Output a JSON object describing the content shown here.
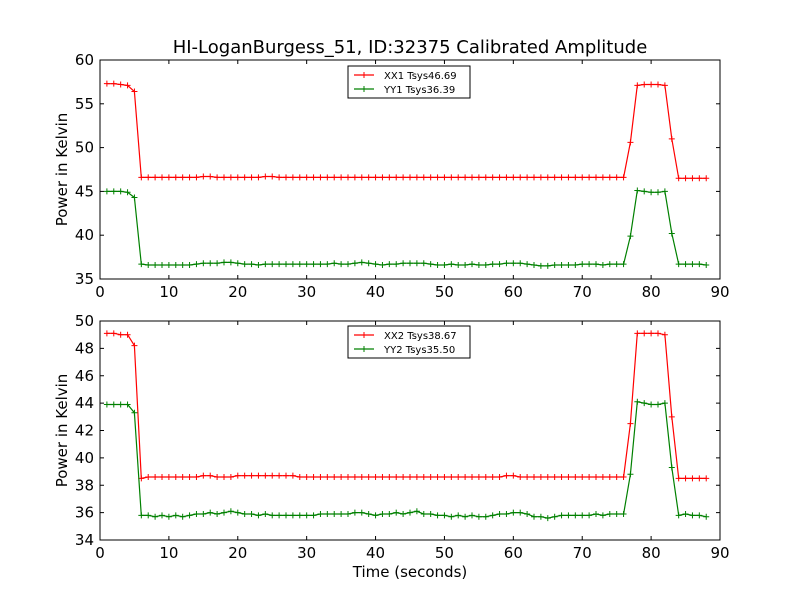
{
  "figure": {
    "title": "HI-LoganBurgess_51, ID:32375 Calibrated Amplitude"
  },
  "chart_data": [
    {
      "type": "line",
      "title": "HI-LoganBurgess_51, ID:32375 Calibrated Amplitude",
      "xlabel": "",
      "ylabel": "Power in Kelvin",
      "xlim": [
        0,
        90
      ],
      "ylim": [
        35,
        60
      ],
      "xticks": [
        0,
        10,
        20,
        30,
        40,
        50,
        60,
        70,
        80,
        90
      ],
      "yticks": [
        35,
        40,
        45,
        50,
        55,
        60
      ],
      "grid": false,
      "legend": "top-center",
      "x": [
        1,
        2,
        3,
        4,
        5,
        6,
        7,
        8,
        9,
        10,
        11,
        12,
        13,
        14,
        15,
        16,
        17,
        18,
        19,
        20,
        21,
        22,
        23,
        24,
        25,
        26,
        27,
        28,
        29,
        30,
        31,
        32,
        33,
        34,
        35,
        36,
        37,
        38,
        39,
        40,
        41,
        42,
        43,
        44,
        45,
        46,
        47,
        48,
        49,
        50,
        51,
        52,
        53,
        54,
        55,
        56,
        57,
        58,
        59,
        60,
        61,
        62,
        63,
        64,
        65,
        66,
        67,
        68,
        69,
        70,
        71,
        72,
        73,
        74,
        75,
        76,
        77,
        78,
        79,
        80,
        81,
        82,
        83,
        84,
        85,
        86,
        87,
        88
      ],
      "series": [
        {
          "name": "XX1 Tsys46.69",
          "color": "#ff0000",
          "values": [
            57.3,
            57.3,
            57.2,
            57.1,
            56.4,
            46.6,
            46.6,
            46.6,
            46.6,
            46.6,
            46.6,
            46.6,
            46.6,
            46.6,
            46.7,
            46.7,
            46.6,
            46.6,
            46.6,
            46.6,
            46.6,
            46.6,
            46.6,
            46.7,
            46.7,
            46.6,
            46.6,
            46.6,
            46.6,
            46.6,
            46.6,
            46.6,
            46.6,
            46.6,
            46.6,
            46.6,
            46.6,
            46.6,
            46.6,
            46.6,
            46.6,
            46.6,
            46.6,
            46.6,
            46.6,
            46.6,
            46.6,
            46.6,
            46.6,
            46.6,
            46.6,
            46.6,
            46.6,
            46.6,
            46.6,
            46.6,
            46.6,
            46.6,
            46.6,
            46.6,
            46.6,
            46.6,
            46.6,
            46.6,
            46.6,
            46.6,
            46.6,
            46.6,
            46.6,
            46.6,
            46.6,
            46.6,
            46.6,
            46.6,
            46.6,
            46.6,
            50.6,
            57.1,
            57.2,
            57.2,
            57.2,
            57.1,
            51.0,
            46.5,
            46.5,
            46.5,
            46.5,
            46.5
          ]
        },
        {
          "name": "YY1 Tsys36.39",
          "color": "#008000",
          "values": [
            45.0,
            45.0,
            45.0,
            44.9,
            44.3,
            36.7,
            36.6,
            36.6,
            36.6,
            36.6,
            36.6,
            36.6,
            36.6,
            36.7,
            36.8,
            36.8,
            36.8,
            36.9,
            36.9,
            36.8,
            36.7,
            36.7,
            36.6,
            36.7,
            36.7,
            36.7,
            36.7,
            36.7,
            36.7,
            36.7,
            36.7,
            36.7,
            36.7,
            36.8,
            36.7,
            36.7,
            36.8,
            36.9,
            36.8,
            36.7,
            36.6,
            36.7,
            36.7,
            36.8,
            36.8,
            36.8,
            36.8,
            36.7,
            36.6,
            36.6,
            36.7,
            36.6,
            36.6,
            36.7,
            36.6,
            36.6,
            36.7,
            36.7,
            36.8,
            36.8,
            36.8,
            36.7,
            36.6,
            36.5,
            36.5,
            36.6,
            36.6,
            36.6,
            36.6,
            36.7,
            36.7,
            36.7,
            36.6,
            36.7,
            36.7,
            36.7,
            39.9,
            45.1,
            45.0,
            44.9,
            44.9,
            45.0,
            40.2,
            36.7,
            36.7,
            36.7,
            36.7,
            36.6
          ]
        }
      ]
    },
    {
      "type": "line",
      "title": "",
      "xlabel": "Time (seconds)",
      "ylabel": "Power in Kelvin",
      "xlim": [
        0,
        90
      ],
      "ylim": [
        34,
        50
      ],
      "xticks": [
        0,
        10,
        20,
        30,
        40,
        50,
        60,
        70,
        80,
        90
      ],
      "yticks": [
        34,
        36,
        38,
        40,
        42,
        44,
        46,
        48,
        50
      ],
      "grid": false,
      "legend": "top-center",
      "x": [
        1,
        2,
        3,
        4,
        5,
        6,
        7,
        8,
        9,
        10,
        11,
        12,
        13,
        14,
        15,
        16,
        17,
        18,
        19,
        20,
        21,
        22,
        23,
        24,
        25,
        26,
        27,
        28,
        29,
        30,
        31,
        32,
        33,
        34,
        35,
        36,
        37,
        38,
        39,
        40,
        41,
        42,
        43,
        44,
        45,
        46,
        47,
        48,
        49,
        50,
        51,
        52,
        53,
        54,
        55,
        56,
        57,
        58,
        59,
        60,
        61,
        62,
        63,
        64,
        65,
        66,
        67,
        68,
        69,
        70,
        71,
        72,
        73,
        74,
        75,
        76,
        77,
        78,
        79,
        80,
        81,
        82,
        83,
        84,
        85,
        86,
        87,
        88
      ],
      "series": [
        {
          "name": "XX2 Tsys38.67",
          "color": "#ff0000",
          "values": [
            49.1,
            49.1,
            49.0,
            49.0,
            48.2,
            38.5,
            38.6,
            38.6,
            38.6,
            38.6,
            38.6,
            38.6,
            38.6,
            38.6,
            38.7,
            38.7,
            38.6,
            38.6,
            38.6,
            38.7,
            38.7,
            38.7,
            38.7,
            38.7,
            38.7,
            38.7,
            38.7,
            38.7,
            38.6,
            38.6,
            38.6,
            38.6,
            38.6,
            38.6,
            38.6,
            38.6,
            38.6,
            38.6,
            38.6,
            38.6,
            38.6,
            38.6,
            38.6,
            38.6,
            38.6,
            38.6,
            38.6,
            38.6,
            38.6,
            38.6,
            38.6,
            38.6,
            38.6,
            38.6,
            38.6,
            38.6,
            38.6,
            38.6,
            38.7,
            38.7,
            38.6,
            38.6,
            38.6,
            38.6,
            38.6,
            38.6,
            38.6,
            38.6,
            38.6,
            38.6,
            38.6,
            38.6,
            38.6,
            38.6,
            38.6,
            38.6,
            42.5,
            49.1,
            49.1,
            49.1,
            49.1,
            49.0,
            43.0,
            38.5,
            38.5,
            38.5,
            38.5,
            38.5
          ]
        },
        {
          "name": "YY2 Tsys35.50",
          "color": "#008000",
          "values": [
            43.9,
            43.9,
            43.9,
            43.9,
            43.3,
            35.8,
            35.8,
            35.7,
            35.8,
            35.7,
            35.8,
            35.7,
            35.8,
            35.9,
            35.9,
            36.0,
            35.9,
            36.0,
            36.1,
            36.0,
            35.9,
            35.9,
            35.8,
            35.9,
            35.8,
            35.8,
            35.8,
            35.8,
            35.8,
            35.8,
            35.8,
            35.9,
            35.9,
            35.9,
            35.9,
            35.9,
            36.0,
            36.0,
            35.9,
            35.8,
            35.9,
            35.9,
            36.0,
            35.9,
            36.0,
            36.1,
            35.9,
            35.9,
            35.8,
            35.8,
            35.7,
            35.8,
            35.7,
            35.8,
            35.7,
            35.7,
            35.8,
            35.9,
            35.9,
            36.0,
            36.0,
            35.9,
            35.7,
            35.7,
            35.6,
            35.7,
            35.8,
            35.8,
            35.8,
            35.8,
            35.8,
            35.9,
            35.8,
            35.9,
            35.9,
            35.9,
            38.8,
            44.1,
            44.0,
            43.9,
            43.9,
            44.0,
            39.3,
            35.8,
            35.9,
            35.8,
            35.8,
            35.7
          ]
        }
      ]
    }
  ]
}
